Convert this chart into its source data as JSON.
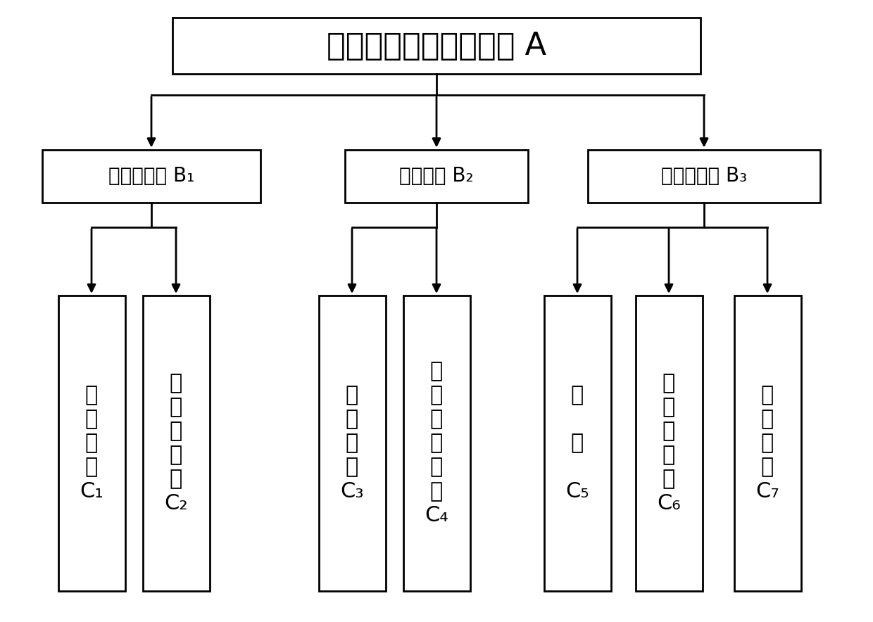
{
  "title": "煤层底板隔水层脆弱性 A",
  "b1_label": "底板隔水层 B₁",
  "b2_label": "地质构造 B₂",
  "b3_label": "底板含水层 B₃",
  "c1_lines": [
    "岩",
    "性",
    "组",
    "合",
    "C₁"
  ],
  "c2_lines": [
    "隔",
    "水",
    "层",
    "厚",
    "度",
    "C₂"
  ],
  "c3_lines": [
    "断",
    "层",
    "分",
    "布",
    "C₃"
  ],
  "c4_lines": [
    "断",
    "层",
    "规",
    "模",
    "指",
    "数",
    "C₄"
  ],
  "c5_lines": [
    "水",
    "",
    "压",
    "",
    "C₅"
  ],
  "c6_lines": [
    "单",
    "位",
    "涌",
    "水",
    "量",
    "C₆"
  ],
  "c7_lines": [
    "渗",
    "透",
    "系",
    "数",
    "C₇"
  ],
  "bg_color": "#ffffff",
  "box_color": "#ffffff",
  "border_color": "#000000",
  "title_fontsize": 32,
  "level1_fontsize": 20,
  "leaf_fontsize": 22
}
